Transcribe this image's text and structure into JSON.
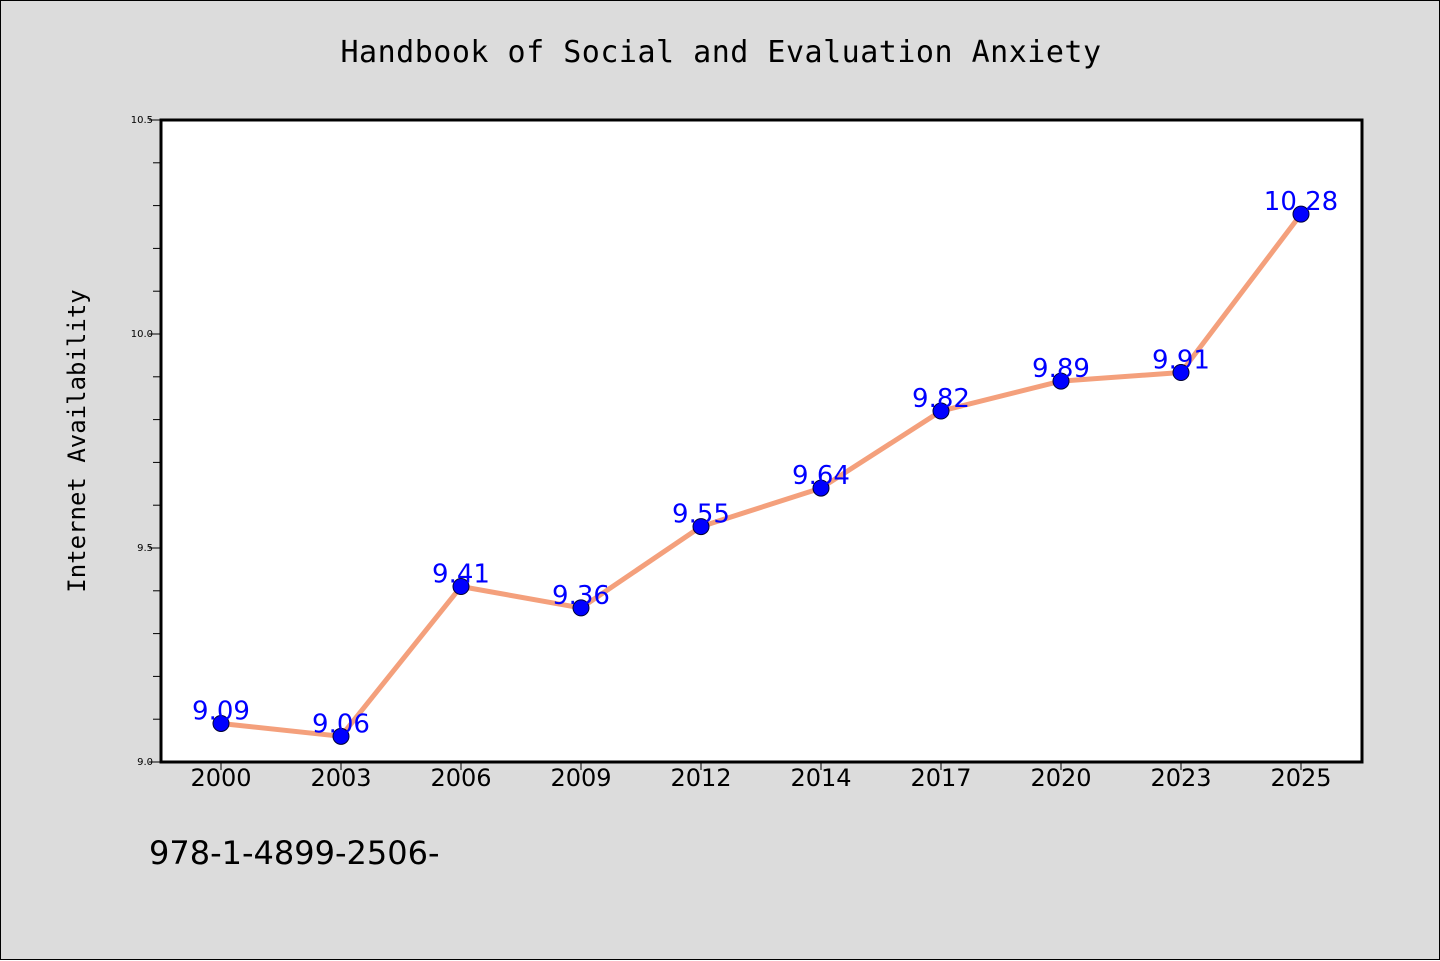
{
  "chart_data": {
    "type": "line",
    "title": "Handbook of Social and Evaluation Anxiety",
    "xlabel": "",
    "ylabel": "Internet Availability",
    "categories": [
      "2000",
      "2003",
      "2006",
      "2009",
      "2012",
      "2014",
      "2017",
      "2020",
      "2023",
      "2025"
    ],
    "series": [
      {
        "values": [
          9.09,
          9.06,
          9.41,
          9.36,
          9.55,
          9.64,
          9.82,
          9.89,
          9.91,
          10.28
        ],
        "data_labels": [
          "9.09",
          "9.06",
          "9.41",
          "9.36",
          "9.55",
          "9.64",
          "9.82",
          "9.89",
          "9.91",
          "10.28"
        ],
        "line_color": "#f4a07c",
        "marker_color": "#0000ff"
      }
    ],
    "ylim": [
      9.0,
      10.5
    ],
    "yticks": [
      "9.0",
      "9.5",
      "10.0",
      "10.5"
    ],
    "grid": false,
    "legend": "none"
  },
  "footnote": "978-1-4899-2506-",
  "colors": {
    "background": "#dcdcdc",
    "plot_background": "#ffffff",
    "line": "#f4a07c",
    "marker": "#0000ff",
    "data_label": "#0000ff"
  }
}
